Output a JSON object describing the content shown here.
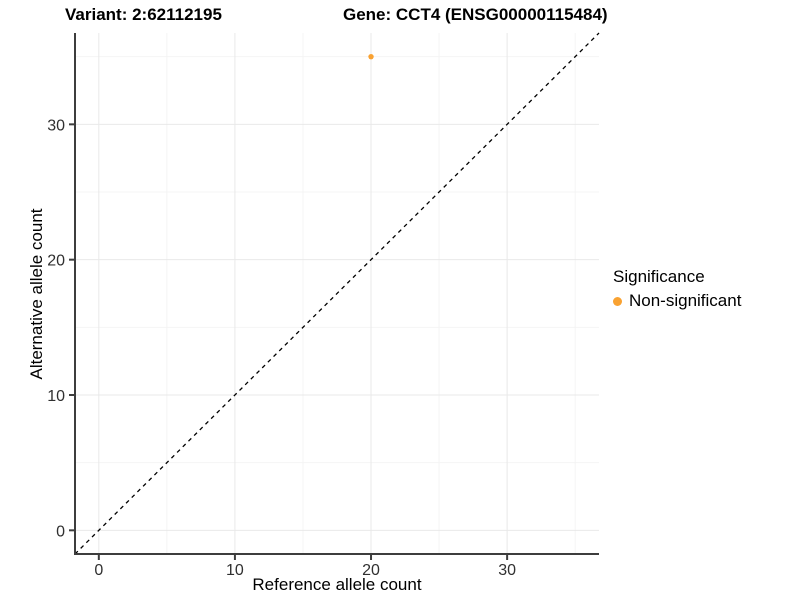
{
  "titles": {
    "variant": "Variant: 2:62112195",
    "gene": "Gene: CCT4 (ENSG00000115484)"
  },
  "legend": {
    "title": "Significance",
    "items": [
      {
        "label": "Non-significant",
        "color": "#F9A232"
      }
    ]
  },
  "chart_data": {
    "type": "scatter",
    "title": "Variant: 2:62112195 — Gene: CCT4 (ENSG00000115484)",
    "xlabel": "Reference allele count",
    "ylabel": "Alternative allele count",
    "xlim": [
      -1.75,
      36.75
    ],
    "ylim": [
      -1.75,
      36.75
    ],
    "x_ticks": [
      0,
      10,
      20,
      30
    ],
    "y_ticks": [
      0,
      10,
      20,
      30
    ],
    "x_minor_ticks": [
      5,
      15,
      25,
      35
    ],
    "y_minor_ticks": [
      5,
      15,
      25,
      35
    ],
    "grid": true,
    "legend_position": "right",
    "series": [
      {
        "name": "Non-significant",
        "color": "#F9A232",
        "points": [
          {
            "x": 20,
            "y": 35
          }
        ]
      }
    ],
    "reference_line": {
      "equation": "y = x",
      "style": "dashed",
      "color": "#000000"
    }
  },
  "style": {
    "point_color": "#F9A232",
    "axis_color": "#3D3D3D",
    "tick_label_color": "#303030",
    "grid_major": "#E9E9E9",
    "grid_minor": "#F4F4F4"
  }
}
